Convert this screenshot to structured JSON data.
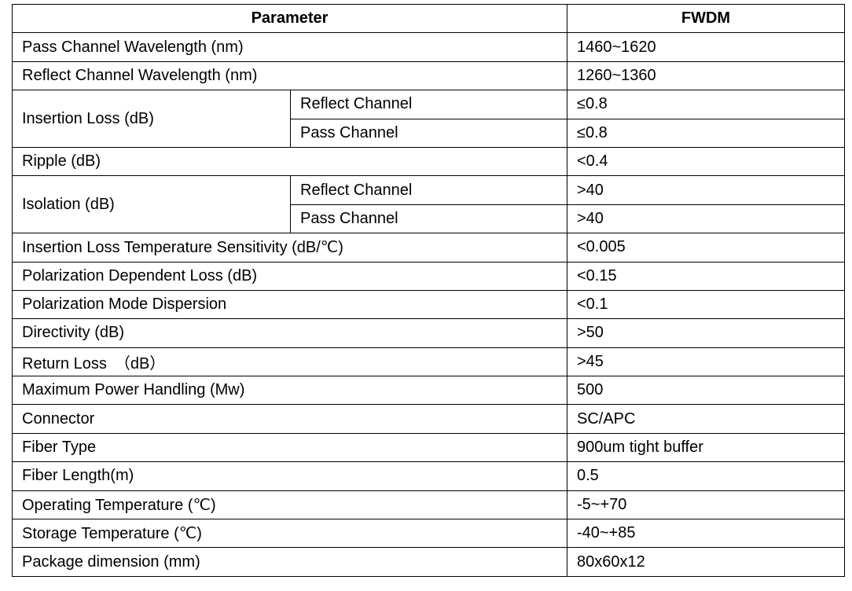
{
  "header": {
    "parameter": "Parameter",
    "value": "FWDM"
  },
  "rows": [
    {
      "param": "Pass Channel Wavelength (nm)",
      "value": "1460~1620"
    },
    {
      "param": "Reflect Channel Wavelength (nm)",
      "value": "1260~1360"
    },
    {
      "param": "Insertion Loss (dB)",
      "sub": [
        {
          "label": "Reflect Channel",
          "value": "≤0.8"
        },
        {
          "label": "Pass Channel",
          "value": "≤0.8"
        }
      ]
    },
    {
      "param": "Ripple (dB)",
      "value": "<0.4"
    },
    {
      "param": "Isolation (dB)",
      "sub": [
        {
          "label": "Reflect Channel",
          "value": ">40"
        },
        {
          "label": "Pass Channel",
          "value": ">40"
        }
      ]
    },
    {
      "param": "Insertion Loss Temperature Sensitivity (dB/℃)",
      "value": "<0.005"
    },
    {
      "param": "Polarization Dependent Loss (dB)",
      "value": "<0.15"
    },
    {
      "param": "Polarization Mode Dispersion",
      "value": "<0.1"
    },
    {
      "param": "Directivity (dB)",
      "value": ">50"
    },
    {
      "param": "Return Loss　（dB）",
      "value": ">45"
    },
    {
      "param": "Maximum Power Handling (Mw)",
      "value": "500"
    },
    {
      "param": "Connector",
      "value": "SC/APC"
    },
    {
      "param": "Fiber Type",
      "value": "900um tight buffer"
    },
    {
      "param": "Fiber Length(m)",
      "value": "0.5"
    },
    {
      "param": "Operating Temperature (℃)",
      "value": "-5~+70"
    },
    {
      "param": "Storage Temperature (℃)",
      "value": "-40~+85"
    },
    {
      "param": "Package dimension (mm)",
      "value": "80x60x12"
    }
  ]
}
